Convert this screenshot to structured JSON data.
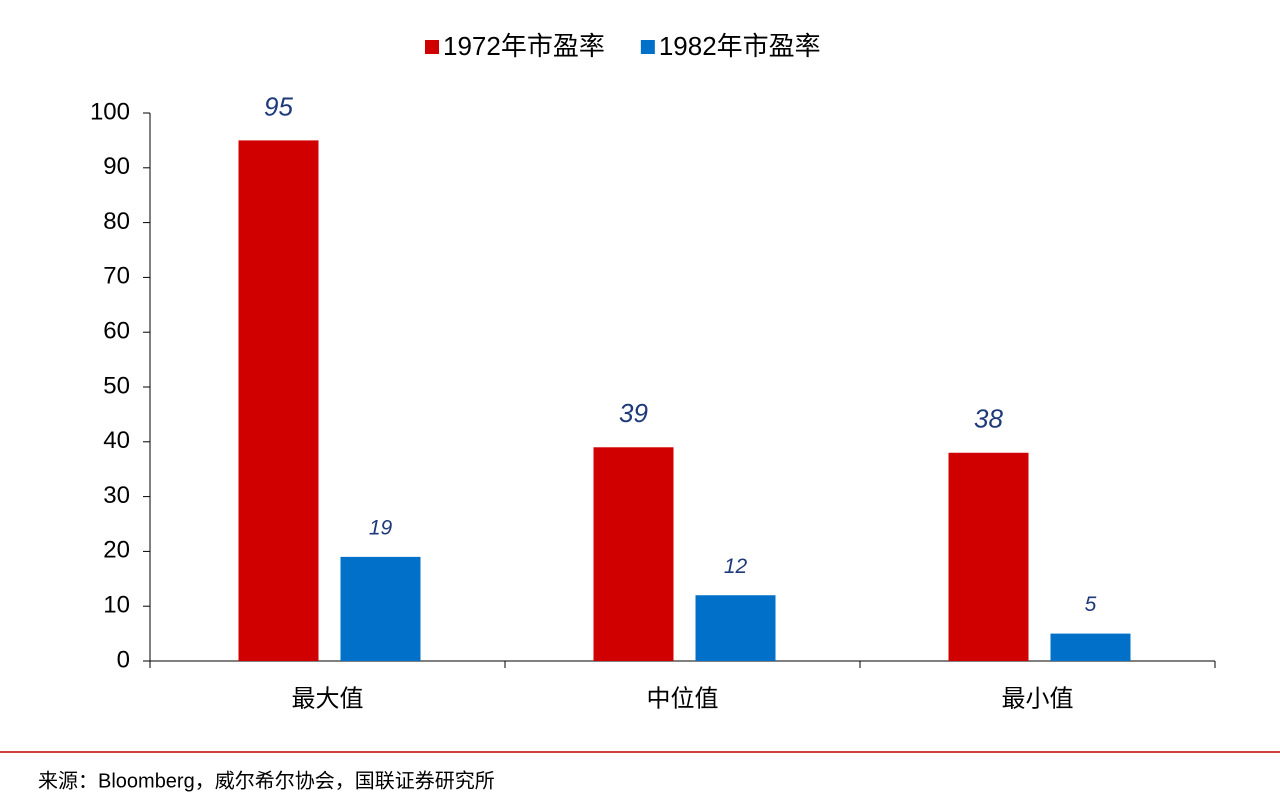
{
  "chart_data": {
    "type": "bar",
    "categories": [
      "最大值",
      "中位值",
      "最小值"
    ],
    "series": [
      {
        "name": "1972年市盈率",
        "color": "#d00000",
        "values": [
          95,
          39,
          38
        ]
      },
      {
        "name": "1982年市盈率",
        "color": "#0070c8",
        "values": [
          19,
          12,
          5
        ]
      }
    ],
    "ylim": [
      0,
      100
    ],
    "yticks": [
      0,
      10,
      20,
      30,
      40,
      50,
      60,
      70,
      80,
      90,
      100
    ],
    "label_color": "#1f3a7a",
    "legend": "top",
    "source": "来源：Bloomberg，威尔希尔协会，国联证券研究所"
  }
}
